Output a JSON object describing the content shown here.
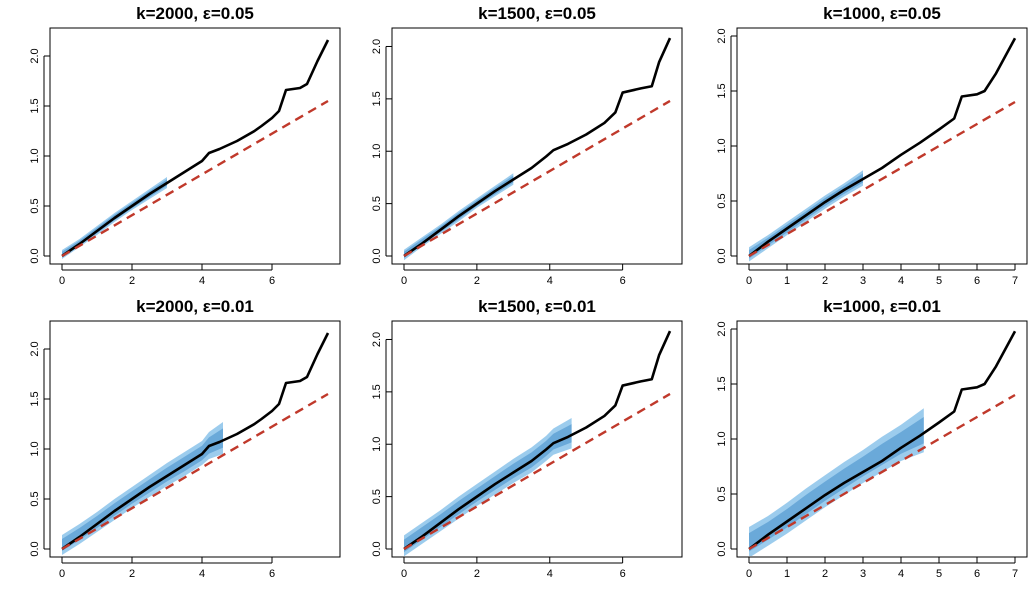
{
  "chart_data": [
    {
      "type": "line",
      "title": "k=2000, ε=0.05",
      "xlim": [
        0,
        7.6
      ],
      "ylim": [
        0,
        2.2
      ],
      "xticks": [
        0,
        2,
        4,
        6
      ],
      "yticks": [
        "0.0",
        "0.5",
        "1.0",
        "1.5",
        "2.0"
      ],
      "series": [
        {
          "role": "black-line",
          "color": "#000000",
          "x": [
            0,
            0.5,
            1,
            1.5,
            2,
            2.5,
            3,
            3.5,
            4,
            4.2,
            4.5,
            5,
            5.5,
            5.7,
            6,
            6.2,
            6.4,
            6.8,
            7,
            7.3,
            7.6
          ],
          "y": [
            0,
            0.12,
            0.25,
            0.38,
            0.5,
            0.62,
            0.73,
            0.84,
            0.95,
            1.03,
            1.07,
            1.15,
            1.25,
            1.3,
            1.38,
            1.45,
            1.66,
            1.68,
            1.72,
            1.95,
            2.16
          ]
        },
        {
          "role": "red-dashed-line",
          "color": "#c0392b",
          "x": [
            0,
            7.6
          ],
          "y": [
            0,
            1.55
          ]
        }
      ],
      "band": {
        "color": "#4aa3df",
        "x": [
          0,
          0.5,
          1,
          1.5,
          2,
          2.5,
          3
        ],
        "lower": [
          -0.03,
          0.09,
          0.21,
          0.34,
          0.46,
          0.57,
          0.68
        ],
        "upper": [
          0.06,
          0.17,
          0.3,
          0.43,
          0.55,
          0.67,
          0.79
        ]
      }
    },
    {
      "type": "line",
      "title": "k=1500, ε=0.05",
      "xlim": [
        0,
        7.3
      ],
      "ylim": [
        0,
        2.1
      ],
      "xticks": [
        0,
        2,
        4,
        6
      ],
      "yticks": [
        "0.0",
        "0.5",
        "1.0",
        "1.5",
        "2.0"
      ],
      "series": [
        {
          "role": "black-line",
          "color": "#000000",
          "x": [
            0,
            0.5,
            1,
            1.5,
            2,
            2.5,
            3,
            3.5,
            3.9,
            4.1,
            4.5,
            5,
            5.5,
            5.8,
            6,
            6.5,
            6.8,
            7,
            7.3
          ],
          "y": [
            0,
            0.12,
            0.25,
            0.38,
            0.5,
            0.62,
            0.73,
            0.84,
            0.95,
            1.01,
            1.07,
            1.16,
            1.27,
            1.37,
            1.56,
            1.6,
            1.62,
            1.85,
            2.08
          ]
        },
        {
          "role": "red-dashed-line",
          "color": "#c0392b",
          "x": [
            0,
            7.3
          ],
          "y": [
            0,
            1.48
          ]
        }
      ],
      "band": {
        "color": "#4aa3df",
        "x": [
          0,
          0.5,
          1,
          1.5,
          2,
          2.5,
          3
        ],
        "lower": [
          -0.04,
          0.09,
          0.21,
          0.33,
          0.46,
          0.57,
          0.68
        ],
        "upper": [
          0.06,
          0.18,
          0.3,
          0.43,
          0.55,
          0.67,
          0.79
        ]
      }
    },
    {
      "type": "line",
      "title": "k=1000, ε=0.05",
      "xlim": [
        0,
        7
      ],
      "ylim": [
        0,
        2.0
      ],
      "xticks": [
        0,
        1,
        2,
        3,
        4,
        5,
        6,
        7
      ],
      "yticks": [
        "0.0",
        "0.5",
        "1.0",
        "1.5",
        "2.0"
      ],
      "series": [
        {
          "role": "black-line",
          "color": "#000000",
          "x": [
            0,
            0.5,
            1,
            1.5,
            2,
            2.5,
            3,
            3.5,
            4,
            4.5,
            5,
            5.4,
            5.6,
            6,
            6.2,
            6.5,
            7
          ],
          "y": [
            0,
            0.13,
            0.25,
            0.37,
            0.49,
            0.6,
            0.7,
            0.8,
            0.92,
            1.03,
            1.15,
            1.25,
            1.45,
            1.47,
            1.5,
            1.66,
            1.98
          ]
        },
        {
          "role": "red-dashed-line",
          "color": "#c0392b",
          "x": [
            0,
            7
          ],
          "y": [
            0,
            1.4
          ]
        }
      ],
      "band": {
        "color": "#4aa3df",
        "x": [
          0,
          0.5,
          1,
          1.5,
          2,
          2.5,
          3
        ],
        "lower": [
          -0.05,
          0.07,
          0.19,
          0.31,
          0.43,
          0.54,
          0.64
        ],
        "upper": [
          0.08,
          0.19,
          0.31,
          0.43,
          0.55,
          0.66,
          0.78
        ]
      }
    },
    {
      "type": "line",
      "title": "k=2000, ε=0.01",
      "xlim": [
        0,
        7.6
      ],
      "ylim": [
        0,
        2.2
      ],
      "xticks": [
        0,
        2,
        4,
        6
      ],
      "yticks": [
        "0.0",
        "0.5",
        "1.0",
        "1.5",
        "2.0"
      ],
      "series": [
        {
          "role": "black-line",
          "color": "#000000",
          "x": [
            0,
            0.5,
            1,
            1.5,
            2,
            2.5,
            3,
            3.5,
            4,
            4.2,
            4.5,
            5,
            5.5,
            5.7,
            6,
            6.2,
            6.4,
            6.8,
            7,
            7.3,
            7.6
          ],
          "y": [
            0,
            0.12,
            0.25,
            0.38,
            0.5,
            0.62,
            0.73,
            0.84,
            0.95,
            1.03,
            1.07,
            1.15,
            1.25,
            1.3,
            1.38,
            1.45,
            1.66,
            1.68,
            1.72,
            1.95,
            2.16
          ]
        },
        {
          "role": "red-dashed-line",
          "color": "#c0392b",
          "x": [
            0,
            7.6
          ],
          "y": [
            0,
            1.55
          ]
        }
      ],
      "band": {
        "color": "#4aa3df",
        "x": [
          0,
          0.5,
          1,
          1.5,
          2,
          2.5,
          3,
          3.5,
          4,
          4.2,
          4.6
        ],
        "lower": [
          -0.06,
          0.05,
          0.17,
          0.29,
          0.41,
          0.52,
          0.63,
          0.73,
          0.84,
          0.9,
          0.95
        ],
        "upper": [
          0.14,
          0.25,
          0.37,
          0.5,
          0.62,
          0.74,
          0.86,
          0.97,
          1.08,
          1.17,
          1.27
        ]
      }
    },
    {
      "type": "line",
      "title": "k=1500, ε=0.01",
      "xlim": [
        0,
        7.3
      ],
      "ylim": [
        0,
        2.1
      ],
      "xticks": [
        0,
        2,
        4,
        6
      ],
      "yticks": [
        "0.0",
        "0.5",
        "1.0",
        "1.5",
        "2.0"
      ],
      "series": [
        {
          "role": "black-line",
          "color": "#000000",
          "x": [
            0,
            0.5,
            1,
            1.5,
            2,
            2.5,
            3,
            3.5,
            3.9,
            4.1,
            4.5,
            5,
            5.5,
            5.8,
            6,
            6.5,
            6.8,
            7,
            7.3
          ],
          "y": [
            0,
            0.12,
            0.25,
            0.38,
            0.5,
            0.62,
            0.73,
            0.84,
            0.95,
            1.01,
            1.07,
            1.16,
            1.27,
            1.37,
            1.56,
            1.6,
            1.62,
            1.85,
            2.08
          ]
        },
        {
          "role": "red-dashed-line",
          "color": "#c0392b",
          "x": [
            0,
            7.3
          ],
          "y": [
            0,
            1.48
          ]
        }
      ],
      "band": {
        "color": "#4aa3df",
        "x": [
          0,
          0.5,
          1,
          1.5,
          2,
          2.5,
          3,
          3.5,
          3.9,
          4.1,
          4.6
        ],
        "lower": [
          -0.07,
          0.05,
          0.17,
          0.29,
          0.41,
          0.52,
          0.63,
          0.73,
          0.84,
          0.9,
          0.96
        ],
        "upper": [
          0.13,
          0.25,
          0.37,
          0.5,
          0.62,
          0.74,
          0.86,
          0.97,
          1.08,
          1.15,
          1.25
        ]
      }
    },
    {
      "type": "line",
      "title": "k=1000, ε=0.01",
      "xlim": [
        0,
        7
      ],
      "ylim": [
        0,
        2.0
      ],
      "xticks": [
        0,
        1,
        2,
        3,
        4,
        5,
        6,
        7
      ],
      "yticks": [
        "0.0",
        "0.5",
        "1.0",
        "1.5",
        "2.0"
      ],
      "series": [
        {
          "role": "black-line",
          "color": "#000000",
          "x": [
            0,
            0.5,
            1,
            1.5,
            2,
            2.5,
            3,
            3.5,
            4,
            4.5,
            5,
            5.4,
            5.6,
            6,
            6.2,
            6.5,
            7
          ],
          "y": [
            0,
            0.13,
            0.25,
            0.37,
            0.49,
            0.6,
            0.7,
            0.8,
            0.92,
            1.03,
            1.15,
            1.25,
            1.45,
            1.47,
            1.5,
            1.66,
            1.98
          ]
        },
        {
          "role": "red-dashed-line",
          "color": "#c0392b",
          "x": [
            0,
            7
          ],
          "y": [
            0,
            1.4
          ]
        }
      ],
      "band": {
        "color": "#4aa3df",
        "x": [
          0,
          0.5,
          1,
          1.5,
          2,
          2.5,
          3,
          3.5,
          4,
          4.6
        ],
        "lower": [
          -0.08,
          0.03,
          0.14,
          0.26,
          0.38,
          0.49,
          0.6,
          0.7,
          0.8,
          0.88
        ],
        "upper": [
          0.2,
          0.3,
          0.42,
          0.55,
          0.67,
          0.79,
          0.9,
          1.02,
          1.13,
          1.28
        ]
      }
    }
  ]
}
